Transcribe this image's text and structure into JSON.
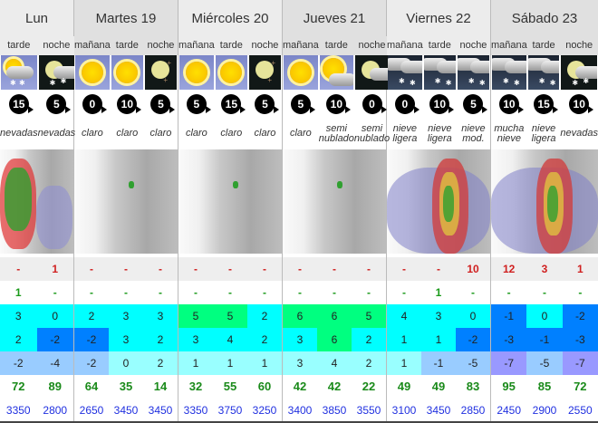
{
  "colors": {
    "temp_warm": "#00ff80",
    "temp_mild": "#00ffff",
    "temp_cold": "#0080ff",
    "min_mild": "#99ffff",
    "min_cold": "#99ccff",
    "min_very_cold": "#9999ff",
    "rain": "#d02020",
    "snow": "#1a9a1a",
    "humidity": "#1a8a1a",
    "altitude": "#2030e0"
  },
  "days": [
    {
      "label": "Lun",
      "map": "snow",
      "periods": [
        {
          "label": "tarde",
          "icon": "sun-cloud-snow",
          "wind": "15",
          "desc": "nevadas",
          "rain": "-",
          "snow": "1",
          "tmax": "3",
          "tmax_bg": "#00ffff",
          "tavg": "2",
          "tavg_bg": "#00ffff",
          "tmin": "-2",
          "tmin_bg": "#99ccff",
          "hum": "72",
          "alt": "3350"
        },
        {
          "label": "noche",
          "icon": "moon-cloud-snow",
          "wind": "5",
          "desc": "nevadas",
          "rain": "1",
          "snow": "-",
          "tmax": "0",
          "tmax_bg": "#00ffff",
          "tavg": "-2",
          "tavg_bg": "#0080ff",
          "tmin": "-4",
          "tmin_bg": "#99ccff",
          "hum": "89",
          "alt": "2800"
        }
      ]
    },
    {
      "label": "Martes 19",
      "map": "clear",
      "periods": [
        {
          "label": "mañana",
          "icon": "sun",
          "wind": "0",
          "desc": "claro",
          "rain": "-",
          "snow": "-",
          "tmax": "2",
          "tmax_bg": "#00ffff",
          "tavg": "-2",
          "tavg_bg": "#0080ff",
          "tmin": "-2",
          "tmin_bg": "#99ccff",
          "hum": "64",
          "alt": "2650"
        },
        {
          "label": "tarde",
          "icon": "sun",
          "wind": "10",
          "desc": "claro",
          "rain": "-",
          "snow": "-",
          "tmax": "3",
          "tmax_bg": "#00ffff",
          "tavg": "3",
          "tavg_bg": "#00ffff",
          "tmin": "0",
          "tmin_bg": "#99ffff",
          "hum": "35",
          "alt": "3450"
        },
        {
          "label": "noche",
          "icon": "moon",
          "wind": "5",
          "desc": "claro",
          "rain": "-",
          "snow": "-",
          "tmax": "3",
          "tmax_bg": "#00ffff",
          "tavg": "2",
          "tavg_bg": "#00ffff",
          "tmin": "2",
          "tmin_bg": "#99ffff",
          "hum": "14",
          "alt": "3450"
        }
      ]
    },
    {
      "label": "Miércoles 20",
      "map": "clear",
      "periods": [
        {
          "label": "mañana",
          "icon": "sun",
          "wind": "5",
          "desc": "claro",
          "rain": "-",
          "snow": "-",
          "tmax": "5",
          "tmax_bg": "#00ff80",
          "tavg": "3",
          "tavg_bg": "#00ffff",
          "tmin": "1",
          "tmin_bg": "#99ffff",
          "hum": "32",
          "alt": "3350"
        },
        {
          "label": "tarde",
          "icon": "sun",
          "wind": "15",
          "desc": "claro",
          "rain": "-",
          "snow": "-",
          "tmax": "5",
          "tmax_bg": "#00ff80",
          "tavg": "4",
          "tavg_bg": "#00ffff",
          "tmin": "1",
          "tmin_bg": "#99ffff",
          "hum": "55",
          "alt": "3750"
        },
        {
          "label": "noche",
          "icon": "moon",
          "wind": "5",
          "desc": "claro",
          "rain": "-",
          "snow": "-",
          "tmax": "2",
          "tmax_bg": "#00ffff",
          "tavg": "2",
          "tavg_bg": "#00ffff",
          "tmin": "1",
          "tmin_bg": "#99ffff",
          "hum": "60",
          "alt": "3250"
        }
      ]
    },
    {
      "label": "Jueves 21",
      "map": "clear",
      "periods": [
        {
          "label": "mañana",
          "icon": "sun",
          "wind": "5",
          "desc": "claro",
          "rain": "-",
          "snow": "-",
          "tmax": "6",
          "tmax_bg": "#00ff80",
          "tavg": "3",
          "tavg_bg": "#00ffff",
          "tmin": "3",
          "tmin_bg": "#99ffff",
          "hum": "42",
          "alt": "3400"
        },
        {
          "label": "tarde",
          "icon": "sun-cloud",
          "wind": "10",
          "desc": "semi\nnublado",
          "rain": "-",
          "snow": "-",
          "tmax": "6",
          "tmax_bg": "#00ff80",
          "tavg": "6",
          "tavg_bg": "#00ff80",
          "tmin": "4",
          "tmin_bg": "#99ffff",
          "hum": "42",
          "alt": "3850"
        },
        {
          "label": "noche",
          "icon": "moon-cloud",
          "wind": "0",
          "desc": "semi\nnublado",
          "rain": "-",
          "snow": "-",
          "tmax": "5",
          "tmax_bg": "#00ff80",
          "tavg": "2",
          "tavg_bg": "#00ffff",
          "tmin": "2",
          "tmin_bg": "#99ffff",
          "hum": "22",
          "alt": "3550"
        }
      ]
    },
    {
      "label": "Viernes 22",
      "map": "rain",
      "periods": [
        {
          "label": "mañana",
          "icon": "cloud-snow",
          "wind": "0",
          "desc": "nieve\nligera",
          "rain": "-",
          "snow": "-",
          "tmax": "4",
          "tmax_bg": "#00ffff",
          "tavg": "1",
          "tavg_bg": "#00ffff",
          "tmin": "1",
          "tmin_bg": "#99ffff",
          "hum": "49",
          "alt": "3100"
        },
        {
          "label": "tarde",
          "icon": "cloud-snow",
          "wind": "10",
          "desc": "nieve\nligera",
          "rain": "-",
          "snow": "1",
          "tmax": "3",
          "tmax_bg": "#00ffff",
          "tavg": "1",
          "tavg_bg": "#00ffff",
          "tmin": "-1",
          "tmin_bg": "#99ccff",
          "hum": "49",
          "alt": "3450"
        },
        {
          "label": "noche",
          "icon": "cloud-snow",
          "wind": "5",
          "desc": "nieve\nmod.",
          "rain": "10",
          "snow": "-",
          "tmax": "0",
          "tmax_bg": "#00ffff",
          "tavg": "-2",
          "tavg_bg": "#0080ff",
          "tmin": "-5",
          "tmin_bg": "#99ccff",
          "hum": "83",
          "alt": "2850"
        }
      ]
    },
    {
      "label": "Sábado 23",
      "map": "rain",
      "periods": [
        {
          "label": "mañana",
          "icon": "cloud-snow",
          "wind": "10",
          "desc": "mucha\nnieve",
          "rain": "12",
          "snow": "-",
          "tmax": "-1",
          "tmax_bg": "#0080ff",
          "tavg": "-3",
          "tavg_bg": "#0080ff",
          "tmin": "-7",
          "tmin_bg": "#9999ff",
          "hum": "95",
          "alt": "2450"
        },
        {
          "label": "tarde",
          "icon": "cloud-snow",
          "wind": "15",
          "desc": "nieve\nligera",
          "rain": "3",
          "snow": "-",
          "tmax": "0",
          "tmax_bg": "#00ffff",
          "tavg": "-1",
          "tavg_bg": "#0080ff",
          "tmin": "-5",
          "tmin_bg": "#99ccff",
          "hum": "85",
          "alt": "2900"
        },
        {
          "label": "noche",
          "icon": "moon-cloud-snow",
          "wind": "10",
          "desc": "nevadas",
          "rain": "1",
          "snow": "-",
          "tmax": "-2",
          "tmax_bg": "#0080ff",
          "tavg": "-3",
          "tavg_bg": "#0080ff",
          "tmin": "-7",
          "tmin_bg": "#9999ff",
          "hum": "72",
          "alt": "2550"
        }
      ]
    }
  ]
}
